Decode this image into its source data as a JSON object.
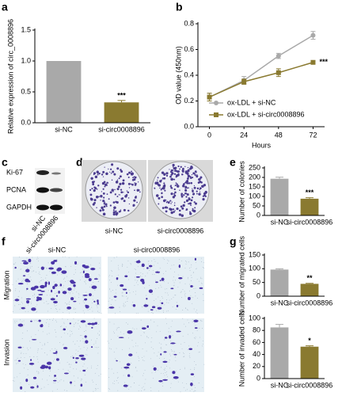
{
  "chart_data": [
    {
      "type": "bar",
      "ylabel": "Relative expression of circ_0008896",
      "categories": [
        "si-NC",
        "si-circ0008896"
      ],
      "values": [
        1.0,
        0.33
      ],
      "errors": [
        0,
        0.03
      ],
      "colors": [
        "#a9a9a9",
        "#8a7a30"
      ],
      "ylim": [
        0,
        1.5
      ],
      "yticks": [
        {
          "value": 0,
          "label": "0.0"
        },
        {
          "value": 0.5,
          "label": "0.5"
        },
        {
          "value": 1,
          "label": "1.0"
        },
        {
          "value": 1.5,
          "label": "1.5"
        }
      ],
      "annotation": "***"
    },
    {
      "type": "line",
      "ylabel": "OD value (450nm)",
      "xlabel": "Hours",
      "x": [
        0,
        24,
        48,
        72
      ],
      "series": [
        {
          "name": "ox-LDL + si-NC",
          "color": "#a9a9a9",
          "marker": "circle",
          "values": [
            0.23,
            0.36,
            0.55,
            0.71
          ],
          "errors": [
            0.03,
            0.03,
            0.02,
            0.03
          ]
        },
        {
          "name": "ox-LDL + si-circ0008896",
          "color": "#8a7a30",
          "marker": "square",
          "values": [
            0.23,
            0.35,
            0.42,
            0.5
          ],
          "errors": [
            0.03,
            0.02,
            0.03,
            0.01
          ]
        }
      ],
      "xlim": [
        -8,
        80
      ],
      "xticks": [
        0,
        24,
        48,
        72
      ],
      "ylim": [
        0,
        0.8
      ],
      "yticks": [
        {
          "value": 0,
          "label": "0.0"
        },
        {
          "value": 0.2,
          "label": "0.2"
        },
        {
          "value": 0.4,
          "label": "0.4"
        },
        {
          "value": 0.6,
          "label": "0.6"
        },
        {
          "value": 0.8,
          "label": "0.8"
        }
      ],
      "annotation": "***"
    },
    {
      "type": "bar",
      "ylabel": "Number of colonies",
      "categories": [
        "si-NC",
        "si-circ0008896"
      ],
      "values": [
        193,
        88
      ],
      "errors": [
        8,
        5
      ],
      "colors": [
        "#a9a9a9",
        "#8a7a30"
      ],
      "ylim": [
        0,
        250
      ],
      "yticks": [
        0,
        50,
        100,
        150,
        200,
        250
      ],
      "annotation": "***"
    },
    {
      "type": "bar",
      "ylabel": "Number of migrated cells",
      "categories": [
        "si-NC",
        "si-circ0008896"
      ],
      "values": [
        97,
        45
      ],
      "errors": [
        3,
        2
      ],
      "colors": [
        "#a9a9a9",
        "#8a7a30"
      ],
      "ylim": [
        0,
        150
      ],
      "yticks": [
        0,
        50,
        100,
        150
      ],
      "annotation": "**"
    },
    {
      "type": "bar",
      "ylabel": "Number of invaded cells",
      "categories": [
        "si-NC",
        "si-circ0008896"
      ],
      "values": [
        85,
        53
      ],
      "errors": [
        5,
        1.5
      ],
      "colors": [
        "#a9a9a9",
        "#8a7a30"
      ],
      "ylim": [
        0,
        100
      ],
      "yticks": [
        0,
        20,
        40,
        60,
        80,
        100
      ],
      "annotation": "*"
    }
  ],
  "labels": {
    "panels": [
      "a",
      "b",
      "c",
      "d",
      "e",
      "f",
      "g"
    ],
    "blot": [
      "Ki-67",
      "PCNA",
      "GAPDH"
    ],
    "blot_lanes": [
      "si-NC",
      "si-circ0008896"
    ],
    "dishes": [
      "si-NC",
      "si-circ0008896"
    ],
    "image_columns": [
      "si-NC",
      "si-circ0008896"
    ],
    "image_rows": [
      "Migration",
      "Invasion"
    ]
  }
}
